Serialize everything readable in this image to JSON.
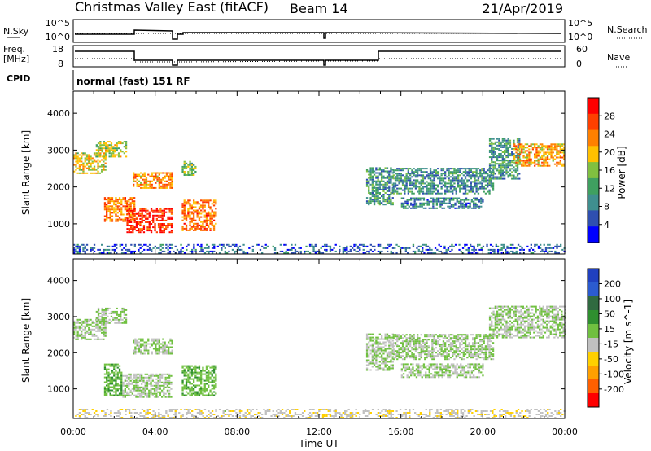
{
  "header": {
    "station": "Christmas Valley East (fitACF)",
    "beam": "Beam 14",
    "date": "21/Apr/2019"
  },
  "status_panels": {
    "nsky_label": "N.Sky",
    "nsearch_label": "N.Search",
    "freq_label_line1": "Freq.",
    "freq_label_line2": "[MHz]",
    "nave_label": "Nave",
    "cpid_label": "CPID",
    "cpid_text": "normal (fast) 151 RF",
    "nsky_ticks": [
      "10^5",
      "10^0"
    ],
    "nsearch_ticks": [
      "10^5",
      "10^0"
    ],
    "freq_ticks": [
      "18",
      "8"
    ],
    "nave_ticks": [
      "60",
      "0"
    ]
  },
  "colors": {
    "power_scale": [
      "#0000ff",
      "#2f4fb0",
      "#3f8f8f",
      "#3fa060",
      "#80c040",
      "#ffc000",
      "#ff8000",
      "#ff4000",
      "#ff0000"
    ],
    "velocity_scale": [
      "#2040c0",
      "#2b5bd0",
      "#306a40",
      "#2f8f2f",
      "#70c040",
      "#c0c0c0",
      "#ffd000",
      "#ffa000",
      "#ff6000",
      "#ff0000"
    ]
  },
  "chart_data": [
    {
      "type": "heatmap",
      "panel": "power",
      "xlabel": "",
      "ylabel": "Slant Range [km]",
      "xlim_hours": [
        0,
        24
      ],
      "ylim": [
        180,
        4600
      ],
      "y_ticks": [
        "1000",
        "2000",
        "3000",
        "4000"
      ],
      "colorbar_label": "Power [dB]",
      "colorbar_ticks": [
        "4",
        "8",
        "12",
        "16",
        "20",
        "24",
        "28"
      ],
      "colorbar_range": [
        0,
        30
      ],
      "regions": [
        {
          "t": [
            0.0,
            1.6
          ],
          "r": [
            2350,
            2900
          ],
          "v": 18
        },
        {
          "t": [
            1.1,
            2.6
          ],
          "r": [
            2800,
            3250
          ],
          "v": 16
        },
        {
          "t": [
            1.5,
            3.0
          ],
          "r": [
            1050,
            1700
          ],
          "v": 22
        },
        {
          "t": [
            2.6,
            4.8
          ],
          "r": [
            750,
            1400
          ],
          "v": 27
        },
        {
          "t": [
            2.9,
            4.8
          ],
          "r": [
            1950,
            2400
          ],
          "v": 21
        },
        {
          "t": [
            5.3,
            7.0
          ],
          "r": [
            800,
            1650
          ],
          "v": 22
        },
        {
          "t": [
            5.3,
            6.0
          ],
          "r": [
            2300,
            2700
          ],
          "v": 13
        },
        {
          "t": [
            14.3,
            15.6
          ],
          "r": [
            1500,
            2500
          ],
          "v": 10
        },
        {
          "t": [
            15.6,
            20.5
          ],
          "r": [
            1800,
            2500
          ],
          "v": 9
        },
        {
          "t": [
            16.0,
            20.0
          ],
          "r": [
            1400,
            1700
          ],
          "v": 8
        },
        {
          "t": [
            20.3,
            21.8
          ],
          "r": [
            2200,
            3300
          ],
          "v": 10
        },
        {
          "t": [
            21.5,
            24.0
          ],
          "r": [
            2550,
            3150
          ],
          "v": 20
        },
        {
          "t": [
            0.0,
            24.0
          ],
          "r": [
            180,
            450
          ],
          "v": 6
        }
      ]
    },
    {
      "type": "heatmap",
      "panel": "velocity",
      "xlabel": "Time UT",
      "ylabel": "Slant Range [km]",
      "xlim_hours": [
        0,
        24
      ],
      "x_ticks": [
        "00:00",
        "04:00",
        "08:00",
        "12:00",
        "16:00",
        "20:00",
        "00:00"
      ],
      "ylim": [
        180,
        4600
      ],
      "y_ticks": [
        "1000",
        "2000",
        "3000",
        "4000"
      ],
      "colorbar_label": "Velocity [m s^-1]",
      "colorbar_ticks": [
        "200",
        "100",
        "50",
        "15",
        "-15",
        "-50",
        "-100",
        "-200"
      ],
      "colorbar_range": [
        -250,
        250
      ],
      "regions": [
        {
          "t": [
            0.0,
            1.6
          ],
          "r": [
            2350,
            2900
          ],
          "v": 0
        },
        {
          "t": [
            1.1,
            2.6
          ],
          "r": [
            2800,
            3250
          ],
          "v": 0
        },
        {
          "t": [
            1.5,
            2.4
          ],
          "r": [
            800,
            1700
          ],
          "v": 40
        },
        {
          "t": [
            2.4,
            4.8
          ],
          "r": [
            750,
            1400
          ],
          "v": 0
        },
        {
          "t": [
            2.9,
            4.8
          ],
          "r": [
            1950,
            2400
          ],
          "v": 0
        },
        {
          "t": [
            5.3,
            7.0
          ],
          "r": [
            800,
            1650
          ],
          "v": 35
        },
        {
          "t": [
            14.3,
            15.6
          ],
          "r": [
            1500,
            2500
          ],
          "v": 0
        },
        {
          "t": [
            15.6,
            20.5
          ],
          "r": [
            1800,
            2500
          ],
          "v": 0
        },
        {
          "t": [
            16.0,
            20.0
          ],
          "r": [
            1300,
            1700
          ],
          "v": 0
        },
        {
          "t": [
            20.3,
            24.0
          ],
          "r": [
            2400,
            3300
          ],
          "v": 0
        },
        {
          "t": [
            0.0,
            24.0
          ],
          "r": [
            180,
            450
          ],
          "v": -35
        }
      ]
    }
  ]
}
